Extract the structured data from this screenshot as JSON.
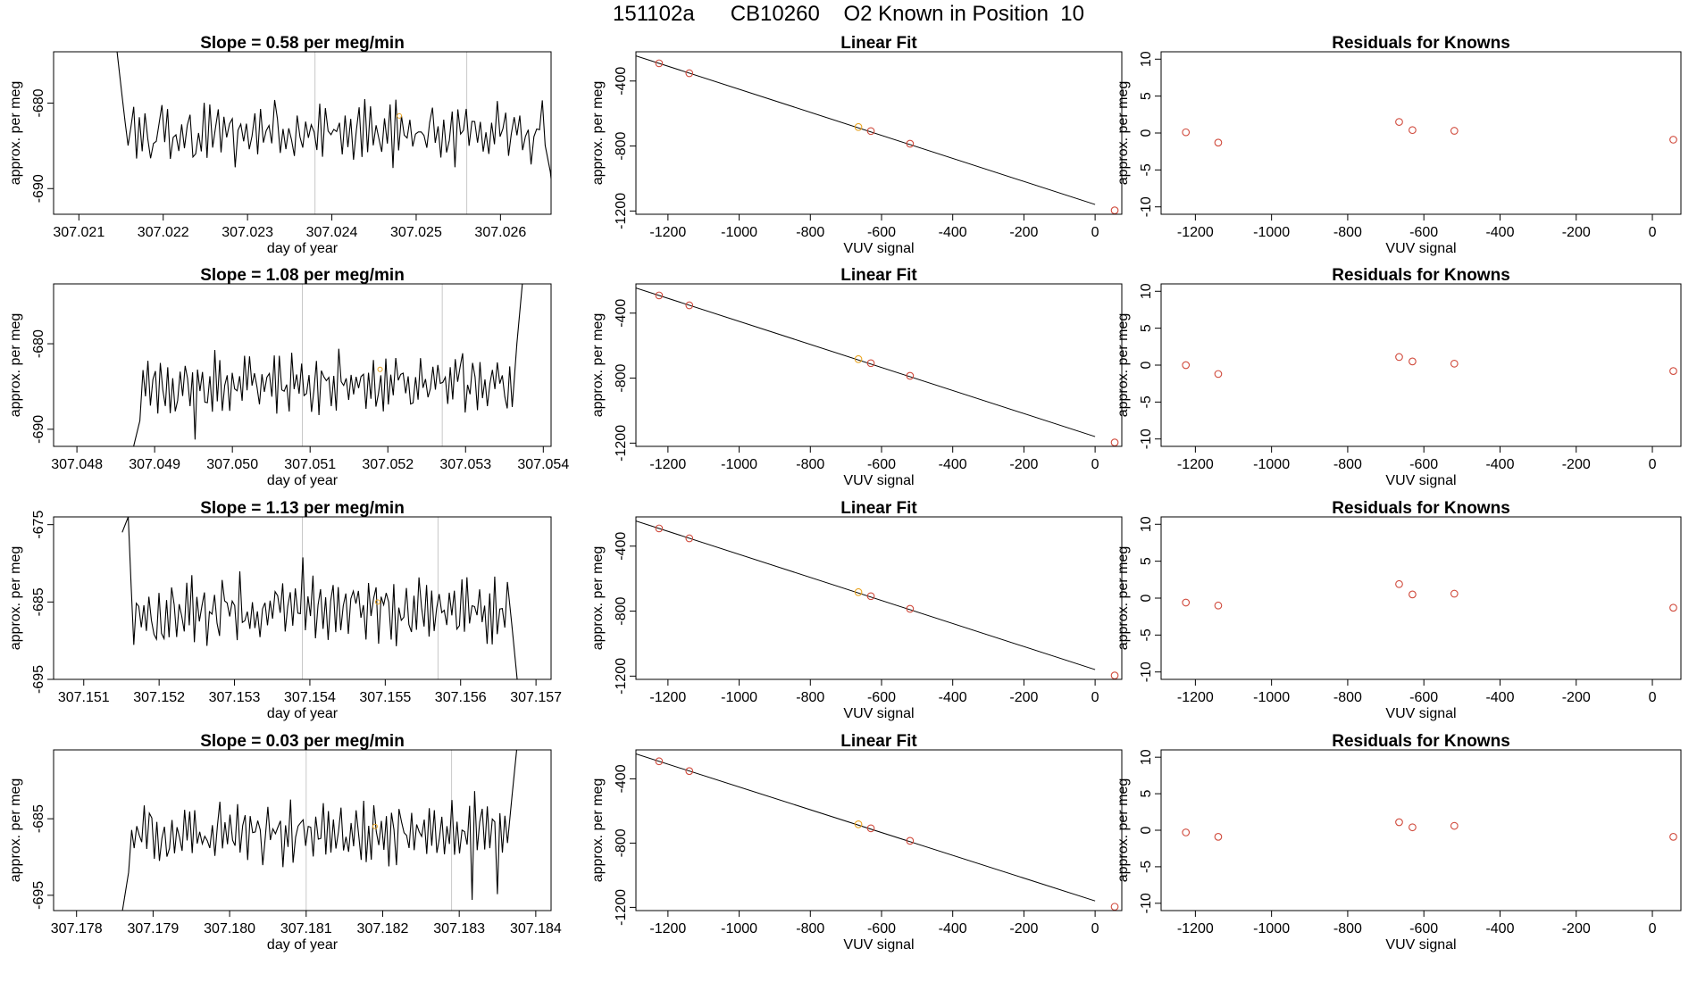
{
  "title": "151102a      CB10260    O2 Known in Position  10",
  "chart_data": [
    {
      "row": 0,
      "panel": "timeseries",
      "type": "line",
      "title": "Slope =  0.58  per meg/min",
      "xlabel": "day of year",
      "ylabel": "approx. per meg",
      "xlim": [
        307.0207,
        307.0266
      ],
      "ylim": [
        -693,
        -674
      ],
      "xticks": [
        307.021,
        307.022,
        307.023,
        307.024,
        307.025,
        307.026
      ],
      "xtick_labels": [
        "307.021",
        "307.022",
        "307.023",
        "307.024",
        "307.025",
        "307.026"
      ],
      "yticks": [
        -680,
        -690
      ],
      "ytick_labels": [
        "-680",
        "-690"
      ],
      "vlines": [
        307.0238,
        307.0256
      ],
      "highlight": {
        "x": 307.0248,
        "y": -681.5
      },
      "series_start": 307.02155,
      "series_end": 307.02653,
      "series_n": 150,
      "series_base": -683.5,
      "series_amp": 2.5,
      "start_spike": [
        -672,
        -679
      ],
      "end_spike": [
        -688,
        -695
      ],
      "seed": 11
    },
    {
      "row": 0,
      "panel": "fit",
      "type": "scatter",
      "title": "Linear Fit",
      "xlabel": "VUV signal",
      "ylabel": "approx. per meg",
      "xlim": [
        -1290,
        75
      ],
      "ylim": [
        -1220,
        -220
      ],
      "xticks": [
        -1200,
        -1000,
        -800,
        -600,
        -400,
        -200,
        0
      ],
      "xtick_labels": [
        "-1200",
        "-1000",
        "-800",
        "-600",
        "-400",
        "-200",
        "0"
      ],
      "yticks": [
        -400,
        -800,
        -1200
      ],
      "ytick_labels": [
        "-400",
        "-800",
        "-1200"
      ],
      "line": {
        "x1": -1290,
        "y1": -245,
        "x2": 0,
        "y2": -1160
      },
      "points": [
        {
          "x": -1225,
          "y": -291,
          "color": "#d04a3c"
        },
        {
          "x": -1140,
          "y": -352,
          "color": "#d04a3c"
        },
        {
          "x": -665,
          "y": -683,
          "color": "#e8a21f"
        },
        {
          "x": -630,
          "y": -708,
          "color": "#d04a3c"
        },
        {
          "x": -520,
          "y": -786,
          "color": "#d04a3c"
        },
        {
          "x": 55,
          "y": -1196,
          "color": "#d04a3c"
        }
      ]
    },
    {
      "row": 0,
      "panel": "residuals",
      "type": "scatter",
      "title": "Residuals for Knowns",
      "xlabel": "VUV signal",
      "ylabel": "approx. per meg",
      "xlim": [
        -1290,
        75
      ],
      "ylim": [
        -11,
        11
      ],
      "xticks": [
        -1200,
        -1000,
        -800,
        -600,
        -400,
        -200,
        0
      ],
      "xtick_labels": [
        "-1200",
        "-1000",
        "-800",
        "-600",
        "-400",
        "-200",
        "0"
      ],
      "yticks": [
        10,
        5,
        0,
        -5,
        -10
      ],
      "ytick_labels": [
        "10",
        "5",
        "0",
        "-5",
        "-10"
      ],
      "points": [
        {
          "x": -1225,
          "y": 0.1,
          "color": "#d04a3c"
        },
        {
          "x": -1140,
          "y": -1.3,
          "color": "#d04a3c"
        },
        {
          "x": -665,
          "y": 1.5,
          "color": "#d04a3c"
        },
        {
          "x": -630,
          "y": 0.4,
          "color": "#d04a3c"
        },
        {
          "x": -520,
          "y": 0.3,
          "color": "#d04a3c"
        },
        {
          "x": 55,
          "y": -0.9,
          "color": "#d04a3c"
        }
      ]
    },
    {
      "row": 1,
      "panel": "timeseries",
      "type": "line",
      "title": "Slope =  1.08  per meg/min",
      "xlabel": "day of year",
      "ylabel": "approx. per meg",
      "xlim": [
        307.0477,
        307.0541
      ],
      "ylim": [
        -692,
        -673
      ],
      "xticks": [
        307.048,
        307.049,
        307.05,
        307.051,
        307.052,
        307.053,
        307.054
      ],
      "xtick_labels": [
        "307.048",
        "307.049",
        "307.050",
        "307.051",
        "307.052",
        "307.053",
        "307.054"
      ],
      "yticks": [
        -680,
        -690
      ],
      "ytick_labels": [
        "-680",
        "-690"
      ],
      "vlines": [
        307.0509,
        307.0527
      ],
      "highlight": {
        "x": 307.0519,
        "y": -683
      },
      "series_start": 307.04885,
      "series_end": 307.0536,
      "series_n": 150,
      "series_base": -684.5,
      "series_amp": 2.4,
      "start_spike": [
        -692,
        -689
      ],
      "end_spike": [
        -680,
        -672
      ],
      "seed": 23
    },
    {
      "row": 1,
      "panel": "fit",
      "type": "scatter",
      "title": "Linear Fit",
      "xlabel": "VUV signal",
      "ylabel": "approx. per meg",
      "xlim": [
        -1290,
        75
      ],
      "ylim": [
        -1220,
        -220
      ],
      "xticks": [
        -1200,
        -1000,
        -800,
        -600,
        -400,
        -200,
        0
      ],
      "xtick_labels": [
        "-1200",
        "-1000",
        "-800",
        "-600",
        "-400",
        "-200",
        "0"
      ],
      "yticks": [
        -400,
        -800,
        -1200
      ],
      "ytick_labels": [
        "-400",
        "-800",
        "-1200"
      ],
      "line": {
        "x1": -1290,
        "y1": -245,
        "x2": 0,
        "y2": -1160
      },
      "points": [
        {
          "x": -1225,
          "y": -291,
          "color": "#d04a3c"
        },
        {
          "x": -1140,
          "y": -352,
          "color": "#d04a3c"
        },
        {
          "x": -665,
          "y": -683,
          "color": "#e8a21f"
        },
        {
          "x": -630,
          "y": -708,
          "color": "#d04a3c"
        },
        {
          "x": -520,
          "y": -786,
          "color": "#d04a3c"
        },
        {
          "x": 55,
          "y": -1196,
          "color": "#d04a3c"
        }
      ]
    },
    {
      "row": 1,
      "panel": "residuals",
      "type": "scatter",
      "title": "Residuals for Knowns",
      "xlabel": "VUV signal",
      "ylabel": "approx. per meg",
      "xlim": [
        -1290,
        75
      ],
      "ylim": [
        -11,
        11
      ],
      "xticks": [
        -1200,
        -1000,
        -800,
        -600,
        -400,
        -200,
        0
      ],
      "xtick_labels": [
        "-1200",
        "-1000",
        "-800",
        "-600",
        "-400",
        "-200",
        "0"
      ],
      "yticks": [
        10,
        5,
        0,
        -5,
        -10
      ],
      "ytick_labels": [
        "10",
        "5",
        "0",
        "-5",
        "-10"
      ],
      "points": [
        {
          "x": -1225,
          "y": 0.0,
          "color": "#d04a3c"
        },
        {
          "x": -1140,
          "y": -1.2,
          "color": "#d04a3c"
        },
        {
          "x": -665,
          "y": 1.1,
          "color": "#d04a3c"
        },
        {
          "x": -630,
          "y": 0.5,
          "color": "#d04a3c"
        },
        {
          "x": -520,
          "y": 0.2,
          "color": "#d04a3c"
        },
        {
          "x": 55,
          "y": -0.8,
          "color": "#d04a3c"
        }
      ]
    },
    {
      "row": 2,
      "panel": "timeseries",
      "type": "line",
      "title": "Slope =  1.13  per meg/min",
      "xlabel": "day of year",
      "ylabel": "approx. per meg",
      "xlim": [
        307.1506,
        307.1572
      ],
      "ylim": [
        -695,
        -674
      ],
      "xticks": [
        307.151,
        307.152,
        307.153,
        307.154,
        307.155,
        307.156,
        307.157
      ],
      "xtick_labels": [
        "307.151",
        "307.152",
        "307.153",
        "307.154",
        "307.155",
        "307.156",
        "307.157"
      ],
      "yticks": [
        -675,
        -685,
        -695
      ],
      "ytick_labels": [
        "-675",
        "-685",
        "-695"
      ],
      "vlines": [
        307.1539,
        307.1557
      ],
      "highlight": {
        "x": 307.1549,
        "y": -685
      },
      "series_start": 307.15163,
      "series_end": 307.15662,
      "series_n": 150,
      "series_base": -686,
      "series_amp": 3,
      "start_spike": [
        -676,
        -674
      ],
      "end_spike": [
        -688,
        -696
      ],
      "seed": 37
    },
    {
      "row": 2,
      "panel": "fit",
      "type": "scatter",
      "title": "Linear Fit",
      "xlabel": "VUV signal",
      "ylabel": "approx. per meg",
      "xlim": [
        -1290,
        75
      ],
      "ylim": [
        -1220,
        -220
      ],
      "xticks": [
        -1200,
        -1000,
        -800,
        -600,
        -400,
        -200,
        0
      ],
      "xtick_labels": [
        "-1200",
        "-1000",
        "-800",
        "-600",
        "-400",
        "-200",
        "0"
      ],
      "yticks": [
        -400,
        -800,
        -1200
      ],
      "ytick_labels": [
        "-400",
        "-800",
        "-1200"
      ],
      "line": {
        "x1": -1290,
        "y1": -245,
        "x2": 0,
        "y2": -1160
      },
      "points": [
        {
          "x": -1225,
          "y": -291,
          "color": "#d04a3c"
        },
        {
          "x": -1140,
          "y": -352,
          "color": "#d04a3c"
        },
        {
          "x": -665,
          "y": -683,
          "color": "#e8a21f"
        },
        {
          "x": -630,
          "y": -708,
          "color": "#d04a3c"
        },
        {
          "x": -520,
          "y": -786,
          "color": "#d04a3c"
        },
        {
          "x": 55,
          "y": -1196,
          "color": "#d04a3c"
        }
      ]
    },
    {
      "row": 2,
      "panel": "residuals",
      "type": "scatter",
      "title": "Residuals for Knowns",
      "xlabel": "VUV signal",
      "ylabel": "approx. per meg",
      "xlim": [
        -1290,
        75
      ],
      "ylim": [
        -11,
        11
      ],
      "xticks": [
        -1200,
        -1000,
        -800,
        -600,
        -400,
        -200,
        0
      ],
      "xtick_labels": [
        "-1200",
        "-1000",
        "-800",
        "-600",
        "-400",
        "-200",
        "0"
      ],
      "yticks": [
        10,
        5,
        0,
        -5,
        -10
      ],
      "ytick_labels": [
        "10",
        "5",
        "0",
        "-5",
        "-10"
      ],
      "points": [
        {
          "x": -1225,
          "y": -0.6,
          "color": "#d04a3c"
        },
        {
          "x": -1140,
          "y": -1.0,
          "color": "#d04a3c"
        },
        {
          "x": -665,
          "y": 1.9,
          "color": "#d04a3c"
        },
        {
          "x": -630,
          "y": 0.5,
          "color": "#d04a3c"
        },
        {
          "x": -520,
          "y": 0.6,
          "color": "#d04a3c"
        },
        {
          "x": 55,
          "y": -1.3,
          "color": "#d04a3c"
        }
      ]
    },
    {
      "row": 3,
      "panel": "timeseries",
      "type": "line",
      "title": "Slope =  0.03  per meg/min",
      "xlabel": "day of year",
      "ylabel": "approx. per meg",
      "xlim": [
        307.1777,
        307.1842
      ],
      "ylim": [
        -697,
        -676
      ],
      "xticks": [
        307.178,
        307.179,
        307.18,
        307.181,
        307.182,
        307.183,
        307.184
      ],
      "xtick_labels": [
        "307.178",
        "307.179",
        "307.180",
        "307.181",
        "307.182",
        "307.183",
        "307.184"
      ],
      "yticks": [
        -685,
        -695
      ],
      "ytick_labels": [
        "-685",
        "-695"
      ],
      "vlines": [
        307.181,
        307.1829
      ],
      "highlight": {
        "x": 307.1819,
        "y": -686
      },
      "series_start": 307.17872,
      "series_end": 307.18363,
      "series_n": 150,
      "series_base": -687,
      "series_amp": 2.8,
      "start_spike": [
        -697,
        -692
      ],
      "end_spike": [
        -682,
        -674
      ],
      "seed": 53
    },
    {
      "row": 3,
      "panel": "fit",
      "type": "scatter",
      "title": "Linear Fit",
      "xlabel": "VUV signal",
      "ylabel": "approx. per meg",
      "xlim": [
        -1290,
        75
      ],
      "ylim": [
        -1220,
        -220
      ],
      "xticks": [
        -1200,
        -1000,
        -800,
        -600,
        -400,
        -200,
        0
      ],
      "xtick_labels": [
        "-1200",
        "-1000",
        "-800",
        "-600",
        "-400",
        "-200",
        "0"
      ],
      "yticks": [
        -400,
        -800,
        -1200
      ],
      "ytick_labels": [
        "-400",
        "-800",
        "-1200"
      ],
      "line": {
        "x1": -1290,
        "y1": -245,
        "x2": 0,
        "y2": -1160
      },
      "points": [
        {
          "x": -1225,
          "y": -291,
          "color": "#d04a3c"
        },
        {
          "x": -1140,
          "y": -352,
          "color": "#d04a3c"
        },
        {
          "x": -665,
          "y": -683,
          "color": "#e8a21f"
        },
        {
          "x": -630,
          "y": -708,
          "color": "#d04a3c"
        },
        {
          "x": -520,
          "y": -786,
          "color": "#d04a3c"
        },
        {
          "x": 55,
          "y": -1196,
          "color": "#d04a3c"
        }
      ]
    },
    {
      "row": 3,
      "panel": "residuals",
      "type": "scatter",
      "title": "Residuals for Knowns",
      "xlabel": "VUV signal",
      "ylabel": "approx. per meg",
      "xlim": [
        -1290,
        75
      ],
      "ylim": [
        -11,
        11
      ],
      "xticks": [
        -1200,
        -1000,
        -800,
        -600,
        -400,
        -200,
        0
      ],
      "xtick_labels": [
        "-1200",
        "-1000",
        "-800",
        "-600",
        "-400",
        "-200",
        "0"
      ],
      "yticks": [
        10,
        5,
        0,
        -5,
        -10
      ],
      "ytick_labels": [
        "10",
        "5",
        "0",
        "-5",
        "-10"
      ],
      "points": [
        {
          "x": -1225,
          "y": -0.3,
          "color": "#d04a3c"
        },
        {
          "x": -1140,
          "y": -0.9,
          "color": "#d04a3c"
        },
        {
          "x": -665,
          "y": 1.1,
          "color": "#d04a3c"
        },
        {
          "x": -630,
          "y": 0.4,
          "color": "#d04a3c"
        },
        {
          "x": -520,
          "y": 0.6,
          "color": "#d04a3c"
        },
        {
          "x": 55,
          "y": -0.9,
          "color": "#d04a3c"
        }
      ]
    }
  ]
}
